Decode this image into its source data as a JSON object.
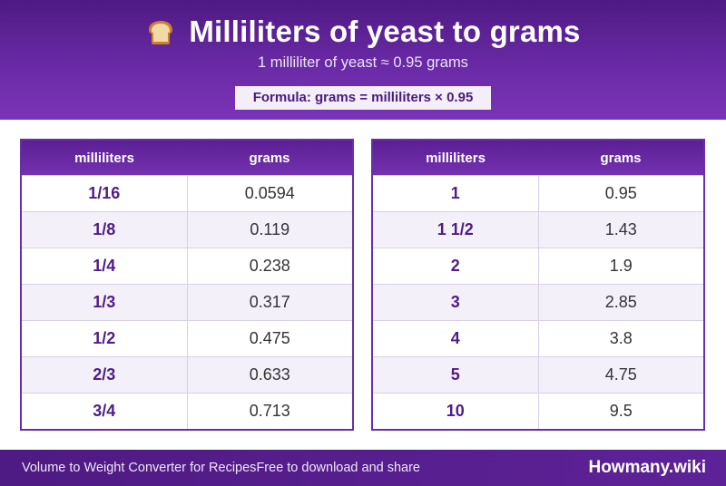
{
  "header": {
    "icon": "bread-icon",
    "title": "Milliliters of yeast to grams",
    "subtitle": "1 milliliter of yeast ≈ 0.95 grams",
    "formula": "Formula: grams = milliliters × 0.95"
  },
  "tables": [
    {
      "headers": [
        "milliliters",
        "grams"
      ],
      "rows": [
        [
          "1/16",
          "0.0594"
        ],
        [
          "1/8",
          "0.119"
        ],
        [
          "1/4",
          "0.238"
        ],
        [
          "1/3",
          "0.317"
        ],
        [
          "1/2",
          "0.475"
        ],
        [
          "2/3",
          "0.633"
        ],
        [
          "3/4",
          "0.713"
        ]
      ]
    },
    {
      "headers": [
        "milliliters",
        "grams"
      ],
      "rows": [
        [
          "1",
          "0.95"
        ],
        [
          "1 1/2",
          "1.43"
        ],
        [
          "2",
          "1.9"
        ],
        [
          "3",
          "2.85"
        ],
        [
          "4",
          "3.8"
        ],
        [
          "5",
          "4.75"
        ],
        [
          "10",
          "9.5"
        ]
      ]
    }
  ],
  "footer": {
    "left_text_1": "Volume to Weight Converter for Recipes",
    "left_text_2": "Free to download and share",
    "brand": "Howmany.wiki"
  },
  "colors": {
    "header_purple": "#5b1f93",
    "accent_purple": "#4f1d86",
    "alt_row": "#f4f0fa"
  }
}
